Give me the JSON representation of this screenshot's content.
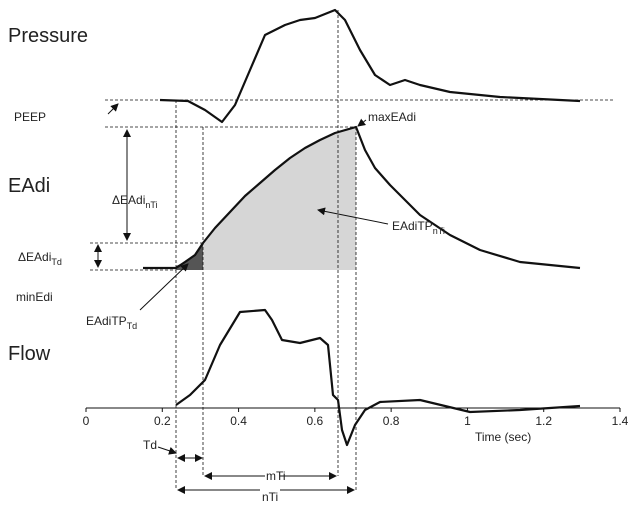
{
  "panels": {
    "pressure": "Pressure",
    "eadi": "EAdi",
    "flow": "Flow"
  },
  "labels": {
    "peep": "PEEP",
    "max_eadi": "maxEAdi",
    "min_edi": "minEdi",
    "delta_nti": {
      "text": "ΔEAdi",
      "subscript": "nTi"
    },
    "delta_td": {
      "text": "ΔEAdi",
      "subscript": "Td"
    },
    "tp_td": {
      "text": "EAdiTP",
      "subscript": "Td"
    },
    "tp_nti": {
      "text": "EAdiTP",
      "subscript": "nTi"
    },
    "td": "Td",
    "mti": "mTi",
    "nti": "nTi"
  },
  "axis": {
    "label": "Time (sec)",
    "ticks": [
      0,
      0.2,
      0.4,
      0.6,
      0.8,
      1,
      1.2,
      1.4
    ],
    "range": [
      0,
      1.4
    ]
  }
}
